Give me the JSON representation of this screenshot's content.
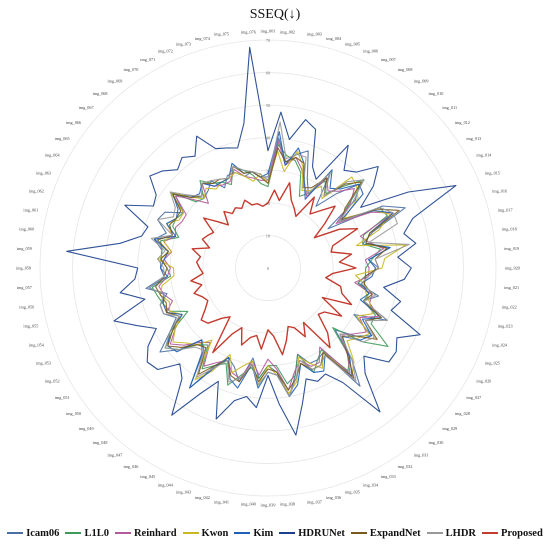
{
  "chart_data": {
    "type": "radar",
    "title": "SSEQ(↓)",
    "radial_ticks": [
      0,
      10,
      20,
      30,
      40,
      50,
      60,
      70
    ],
    "rlim": [
      0,
      70
    ],
    "grid": true,
    "legend_position": "bottom",
    "categories": [
      "img_001",
      "img_002",
      "img_003",
      "img_004",
      "img_005",
      "img_006",
      "img_007",
      "img_008",
      "img_009",
      "img_010",
      "img_011",
      "img_012",
      "img_013",
      "img_014",
      "img_015",
      "img_016",
      "img_017",
      "img_018",
      "img_019",
      "img_020",
      "img_021",
      "img_022",
      "img_023",
      "img_024",
      "img_025",
      "img_026",
      "img_027",
      "img_028",
      "img_029",
      "img_030",
      "img_031",
      "img_032",
      "img_033",
      "img_034",
      "img_035",
      "img_036",
      "img_037",
      "img_038",
      "img_039",
      "img_040",
      "img_041",
      "img_042",
      "img_043",
      "img_044",
      "img_045",
      "img_046",
      "img_047",
      "img_048",
      "img_049",
      "img_050",
      "img_051",
      "img_052",
      "img_053",
      "img_054",
      "img_055",
      "img_056",
      "img_057",
      "img_058",
      "img_059",
      "img_060",
      "img_061",
      "img_062",
      "img_063",
      "img_064",
      "img_065",
      "img_066",
      "img_067",
      "img_068",
      "img_069",
      "img_070",
      "img_071",
      "img_072",
      "img_073",
      "img_074",
      "img_075",
      "img_076"
    ],
    "series": [
      {
        "name": "Icam06",
        "color": "#4a6fa5",
        "values": [
          28,
          40,
          33,
          36,
          38,
          30,
          26,
          35,
          24,
          31,
          38,
          34,
          22,
          40,
          46,
          34,
          30,
          38,
          31,
          34,
          30,
          28,
          35,
          31,
          40,
          30,
          38,
          34,
          28,
          38,
          46,
          31,
          32,
          32,
          28,
          34,
          40,
          32,
          30,
          34,
          28,
          36,
          32,
          30,
          34,
          44,
          32,
          30,
          37,
          42,
          36,
          32,
          35,
          35,
          32,
          38,
          32,
          33,
          33,
          33,
          36,
          33,
          37,
          36,
          31,
          36,
          33,
          29,
          30,
          32,
          28,
          31,
          31,
          29,
          30,
          28
        ]
      },
      {
        "name": "L1L0",
        "color": "#3e9a58",
        "values": [
          25,
          38,
          35,
          34,
          31,
          24,
          26,
          32,
          29,
          34,
          40,
          31,
          26,
          39,
          40,
          31,
          30,
          35,
          32,
          30,
          30,
          28,
          32,
          31,
          36,
          36,
          44,
          37,
          27,
          37,
          40,
          30,
          32,
          35,
          28,
          34,
          36,
          30,
          30,
          34,
          31,
          34,
          38,
          32,
          34,
          37,
          30,
          32,
          37,
          40,
          35,
          28,
          33,
          34,
          35,
          36,
          30,
          31,
          33,
          33,
          34,
          29,
          32,
          32,
          31,
          38,
          30,
          29,
          34,
          31,
          30,
          28,
          33,
          31,
          29,
          26
        ]
      },
      {
        "name": "Reinhard",
        "color": "#b25a9b",
        "values": [
          27,
          39,
          32,
          35,
          32,
          28,
          25,
          33,
          30,
          32,
          36,
          32,
          25,
          36,
          42,
          30,
          32,
          36,
          30,
          31,
          31,
          27,
          33,
          33,
          37,
          32,
          36,
          33,
          30,
          36,
          41,
          29,
          33,
          33,
          30,
          33,
          38,
          31,
          28,
          33,
          29,
          35,
          34,
          31,
          33,
          36,
          29,
          31,
          35,
          38,
          34,
          30,
          34,
          31,
          33,
          34,
          31,
          30,
          32,
          30,
          33,
          30,
          31,
          30,
          30,
          36,
          31,
          27,
          33,
          30,
          29,
          29,
          32,
          29,
          28,
          27
        ]
      },
      {
        "name": "Kwon",
        "color": "#c9b820",
        "values": [
          26,
          36,
          30,
          37,
          33,
          26,
          27,
          30,
          27,
          38,
          37,
          35,
          28,
          37,
          41,
          36,
          28,
          43,
          36,
          35,
          27,
          30,
          31,
          33,
          35,
          31,
          37,
          35,
          33,
          39,
          42,
          31,
          35,
          32,
          29,
          36,
          39,
          33,
          30,
          36,
          29,
          31,
          34,
          29,
          36,
          41,
          28,
          32,
          34,
          37,
          34,
          30,
          33,
          32,
          34,
          33,
          29,
          29,
          34,
          30,
          33,
          31,
          34,
          31,
          31,
          38,
          32,
          29,
          31,
          29,
          30,
          30,
          31,
          29,
          27,
          29
        ]
      },
      {
        "name": "Kim",
        "color": "#1f5fb5",
        "values": [
          29,
          42,
          32,
          38,
          34,
          28,
          24,
          36,
          31,
          33,
          38,
          37,
          27,
          37,
          42,
          33,
          31,
          38,
          31,
          33,
          32,
          29,
          32,
          30,
          38,
          33,
          38,
          36,
          31,
          37,
          42,
          32,
          36,
          35,
          31,
          37,
          40,
          33,
          32,
          37,
          30,
          38,
          36,
          30,
          35,
          44,
          33,
          30,
          38,
          39,
          36,
          30,
          34,
          34,
          33,
          37,
          31,
          33,
          32,
          31,
          36,
          30,
          34,
          32,
          33,
          37,
          32,
          31,
          33,
          30,
          30,
          30,
          34,
          30,
          30,
          28
        ]
      },
      {
        "name": "HDRUNet",
        "color": "#1a3f8c",
        "values": [
          36,
          48,
          40,
          47,
          45,
          34,
          31,
          45,
          38,
          40,
          46,
          41,
          34,
          49,
          63,
          47,
          43,
          46,
          40,
          44,
          42,
          36,
          42,
          40,
          51,
          45,
          47,
          47,
          40,
          44,
          56,
          42,
          37,
          38,
          36,
          43,
          52,
          42,
          33,
          43,
          40,
          42,
          49,
          38,
          44,
          54,
          43,
          40,
          46,
          47,
          44,
          39,
          44,
          50,
          39,
          46,
          41,
          40,
          62,
          46,
          40,
          39,
          48,
          40,
          41,
          46,
          44,
          41,
          43,
          41,
          46,
          40,
          39,
          38,
          45,
          68
        ]
      },
      {
        "name": "ExpandNet",
        "color": "#7a5a1c",
        "values": [
          26,
          37,
          33,
          35,
          34,
          27,
          28,
          33,
          28,
          35,
          39,
          30,
          27,
          38,
          44,
          33,
          31,
          37,
          33,
          34,
          30,
          30,
          33,
          31,
          38,
          34,
          40,
          34,
          31,
          36,
          43,
          31,
          34,
          34,
          31,
          35,
          38,
          32,
          31,
          35,
          30,
          36,
          35,
          31,
          34,
          39,
          31,
          32,
          36,
          39,
          35,
          31,
          34,
          33,
          34,
          35,
          32,
          31,
          33,
          31,
          35,
          31,
          33,
          32,
          32,
          37,
          32,
          30,
          33,
          31,
          31,
          30,
          33,
          30,
          30,
          28
        ]
      },
      {
        "name": "LHDR",
        "color": "#999999",
        "values": [
          27,
          45,
          34,
          36,
          36,
          27,
          26,
          35,
          28,
          36,
          40,
          33,
          26,
          39,
          42,
          42,
          32,
          44,
          33,
          34,
          31,
          29,
          34,
          31,
          40,
          34,
          39,
          37,
          30,
          38,
          44,
          32,
          34,
          34,
          30,
          35,
          40,
          33,
          32,
          36,
          30,
          35,
          37,
          31,
          35,
          40,
          32,
          33,
          37,
          40,
          36,
          31,
          35,
          35,
          33,
          37,
          32,
          32,
          34,
          32,
          37,
          31,
          37,
          33,
          34,
          38,
          33,
          30,
          33,
          32,
          31,
          30,
          33,
          31,
          30,
          29
        ]
      },
      {
        "name": "Proposed",
        "color": "#c43b2f",
        "values": [
          20,
          24,
          21,
          27,
          22,
          20,
          18,
          26,
          21,
          24,
          28,
          22,
          17,
          25,
          30,
          21,
          20,
          26,
          22,
          27,
          20,
          18,
          23,
          24,
          28,
          19,
          27,
          22,
          21,
          27,
          31,
          20,
          24,
          20,
          19,
          23,
          27,
          21,
          19,
          25,
          21,
          22,
          25,
          20,
          23,
          31,
          19,
          21,
          25,
          26,
          23,
          21,
          22,
          24,
          21,
          24,
          20,
          21,
          22,
          21,
          24,
          19,
          22,
          21,
          20,
          25,
          21,
          18,
          22,
          20,
          21,
          20,
          22,
          20,
          20,
          19
        ]
      }
    ]
  }
}
